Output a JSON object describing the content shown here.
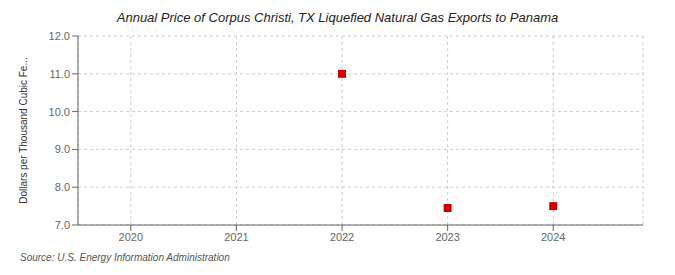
{
  "chart_data": {
    "type": "scatter",
    "title": "Annual Price of Corpus Christi, TX Liquefied Natural Gas Exports to Panama",
    "y_label": "Dollars per Thousand Cubic Fe...",
    "annotation": "Source: U.S. Energy Information Administration",
    "x": [
      2022,
      2023,
      2024
    ],
    "values": [
      11.0,
      7.45,
      7.5
    ],
    "color": "#cc0000",
    "marker": "square",
    "xlim": [
      2019.5,
      2024.85
    ],
    "xticks": [
      2020,
      2021,
      2022,
      2023,
      2024
    ],
    "ylim": [
      7.0,
      12.0
    ],
    "yticks": [
      {
        "value": 7.0,
        "label": "7.0"
      },
      {
        "value": 8.0,
        "label": "8.0"
      },
      {
        "value": 9.0,
        "label": "9.0"
      },
      {
        "value": 10.0,
        "label": "10.0"
      },
      {
        "value": 11.0,
        "label": "11.0"
      },
      {
        "value": 12.0,
        "label": "12.0"
      }
    ],
    "grid": true
  }
}
